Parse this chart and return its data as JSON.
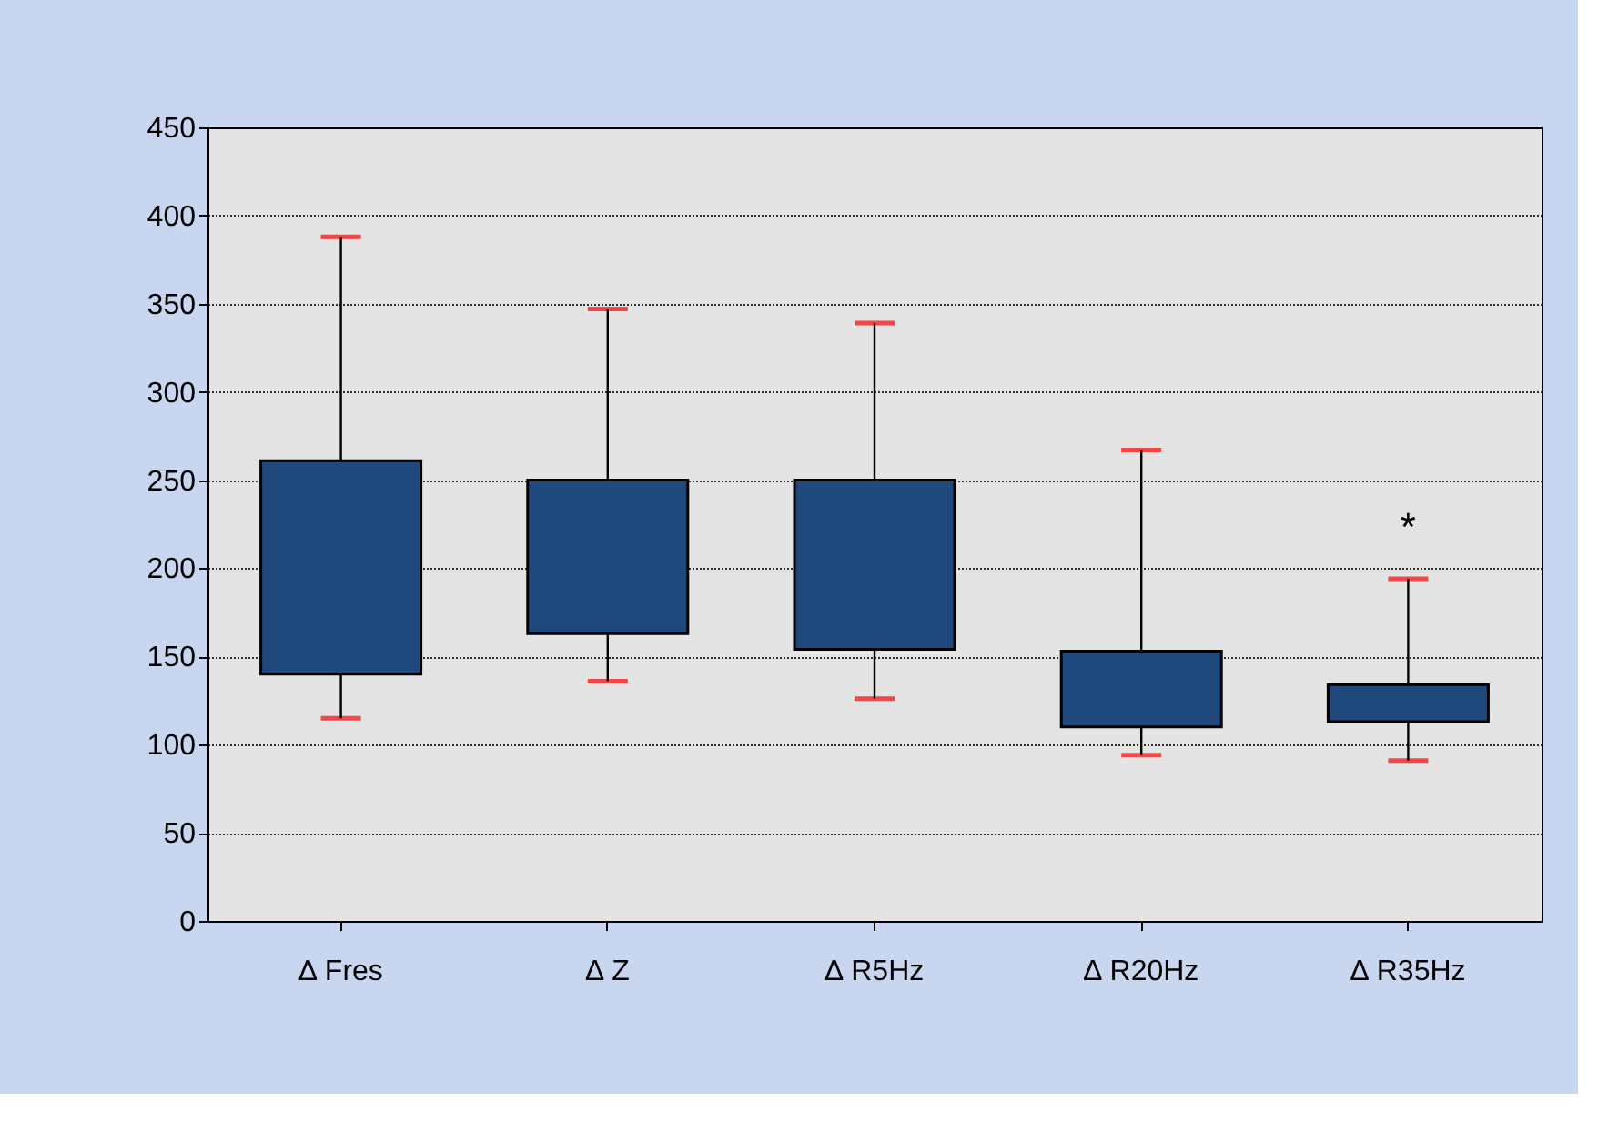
{
  "chart_data": {
    "type": "bar",
    "categories": [
      "∆ Fres",
      "∆ Z",
      "∆ R5Hz",
      "∆ R20Hz",
      "∆ R35Hz"
    ],
    "series": [
      {
        "color": "#1f497d",
        "base": [
          140,
          163,
          154,
          110,
          113
        ],
        "values": [
          121,
          87,
          96,
          43,
          21
        ],
        "errors": [
          [
            115,
            388
          ],
          [
            136,
            347
          ],
          [
            126,
            339
          ],
          [
            94,
            267
          ],
          [
            91,
            194
          ]
        ]
      }
    ],
    "ylim": [
      0,
      450
    ],
    "yticks": [
      0,
      50,
      100,
      150,
      200,
      250,
      300,
      350,
      400,
      450
    ],
    "grid": "y",
    "annotations": [
      "*"
    ]
  }
}
